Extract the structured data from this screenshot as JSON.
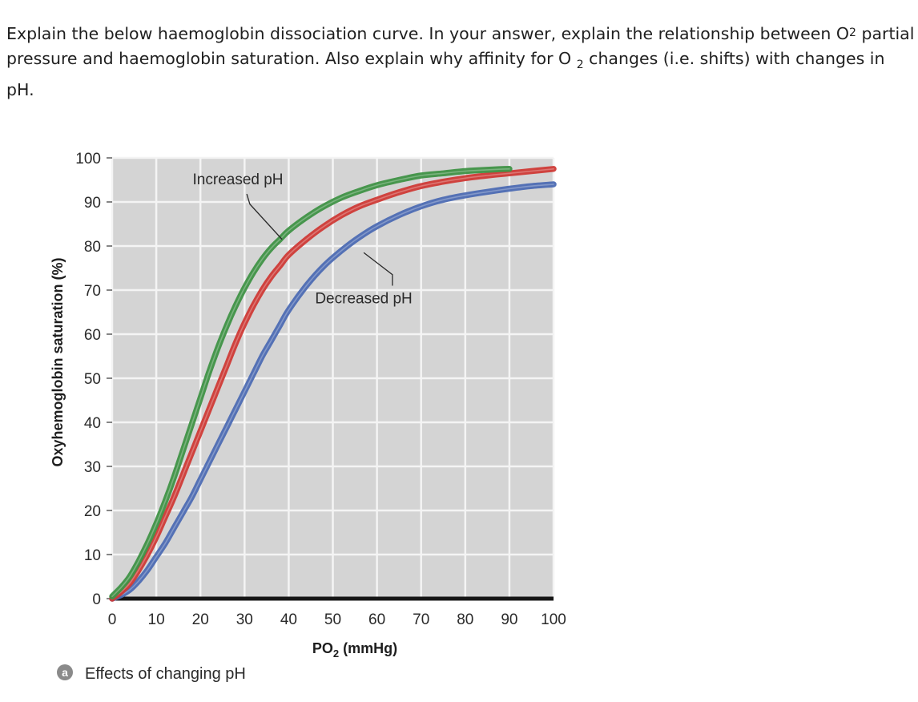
{
  "question": {
    "part1": "Explain the below haemoglobin dissociation curve. In your answer, explain the relationship between O",
    "sub1": "2",
    "part2": "partial pressure and haemoglobin saturation. Also explain why affinity for O",
    "sub2": "2",
    "part3": "changes (i.e. shifts) with changes in pH."
  },
  "colors": {
    "plot_background": "#d4d4d4",
    "grid": "#f4f4f4",
    "increased_ph": "#3f9246",
    "normal": "#cf3a36",
    "decreased_ph": "#4d6cb3",
    "baseline": "#151515"
  },
  "chart_data": {
    "type": "line",
    "title": "",
    "xlabel": "PO",
    "xlabel_sub": "2",
    "xlabel_units": "(mmHg)",
    "ylabel": "Oxyhemoglobin saturation (%)",
    "xlim": [
      0,
      100
    ],
    "ylim": [
      0,
      100
    ],
    "xticks": [
      0,
      10,
      20,
      30,
      40,
      50,
      60,
      70,
      80,
      90,
      100
    ],
    "yticks": [
      0,
      10,
      20,
      30,
      40,
      50,
      60,
      70,
      80,
      90,
      100
    ],
    "grid": true,
    "series": [
      {
        "name": "Increased pH",
        "color": "#3f9246",
        "x": [
          0,
          2,
          4,
          6,
          8,
          10,
          12,
          14,
          16,
          18,
          20,
          22,
          24,
          26,
          28,
          30,
          32,
          34,
          36,
          38,
          40,
          44,
          48,
          52,
          56,
          60,
          65,
          70,
          75,
          80,
          85,
          90
        ],
        "y": [
          0.5,
          2.5,
          5,
          8.5,
          12.5,
          17,
          22,
          27.5,
          33.5,
          39.5,
          45.5,
          51.5,
          57,
          62,
          66.5,
          70.5,
          74,
          77,
          79.5,
          81.5,
          83.5,
          86.5,
          89,
          91,
          92.5,
          93.8,
          95,
          96,
          96.5,
          97,
          97.3,
          97.5
        ]
      },
      {
        "name": "",
        "color": "#cf3a36",
        "x": [
          0,
          2,
          4,
          6,
          8,
          10,
          12,
          14,
          16,
          18,
          20,
          22,
          24,
          26,
          28,
          30,
          32,
          34,
          36,
          38,
          40,
          44,
          48,
          52,
          56,
          60,
          65,
          70,
          75,
          80,
          85,
          90,
          95,
          100
        ],
        "y": [
          0,
          1.5,
          3.5,
          6.5,
          10,
          14,
          18.5,
          23,
          28,
          33,
          38,
          43,
          48,
          53,
          58,
          62.5,
          66.5,
          70,
          73,
          75.5,
          78,
          81.5,
          84.5,
          87,
          89,
          90.5,
          92.2,
          93.6,
          94.6,
          95.4,
          96,
          96.5,
          97,
          97.5
        ]
      },
      {
        "name": "Decreased pH",
        "color": "#4d6cb3",
        "x": [
          0,
          2,
          4,
          6,
          8,
          10,
          12,
          14,
          16,
          18,
          20,
          22,
          24,
          26,
          28,
          30,
          32,
          34,
          36,
          38,
          40,
          44,
          48,
          52,
          56,
          60,
          65,
          70,
          75,
          80,
          85,
          90,
          95,
          100
        ],
        "y": [
          0,
          0.8,
          2,
          4,
          6.5,
          9.5,
          12.5,
          16,
          19.5,
          23,
          27,
          31,
          35,
          39,
          43,
          47,
          51,
          55,
          58.5,
          62,
          65.5,
          71,
          75.5,
          79,
          82,
          84.5,
          87,
          89,
          90.5,
          91.5,
          92.3,
          93,
          93.6,
          94
        ]
      }
    ],
    "annotations": [
      {
        "text": "Increased pH"
      },
      {
        "text": "Decreased pH"
      }
    ],
    "caption_marker": "a",
    "caption": "Effects of changing pH"
  }
}
